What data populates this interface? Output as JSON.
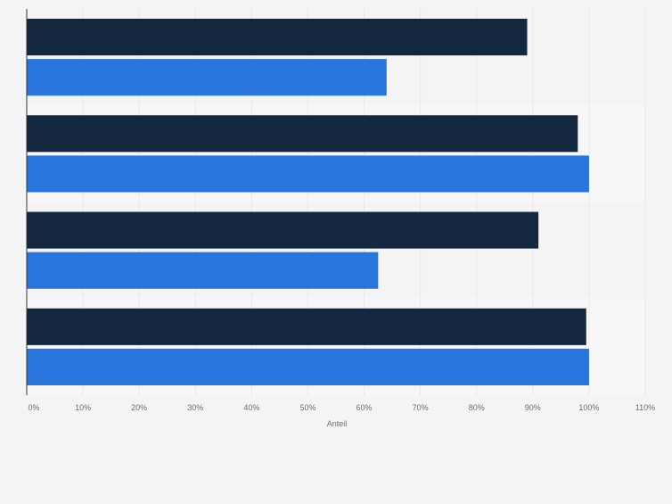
{
  "chart_data": {
    "type": "bar",
    "orientation": "horizontal",
    "categories": [
      "",
      "",
      "",
      ""
    ],
    "series": [
      {
        "values": [
          89,
          98,
          91,
          99.5
        ],
        "color": "#13273f"
      },
      {
        "values": [
          64,
          100,
          62.5,
          100
        ],
        "color": "#2876dd"
      }
    ],
    "xlabel": "Anteil",
    "xlim": [
      0,
      110
    ],
    "x_ticks": [
      "0%",
      "10%",
      "20%",
      "30%",
      "40%",
      "50%",
      "60%",
      "70%",
      "80%",
      "90%",
      "100%",
      "110%"
    ],
    "grid": true,
    "legend": "none",
    "colors": {
      "background": "#f4f4f4",
      "band_alt": "#f7f7f7",
      "gridline": "#dedede",
      "axis": "#333333",
      "tick_text": "#6e6e6e"
    }
  }
}
